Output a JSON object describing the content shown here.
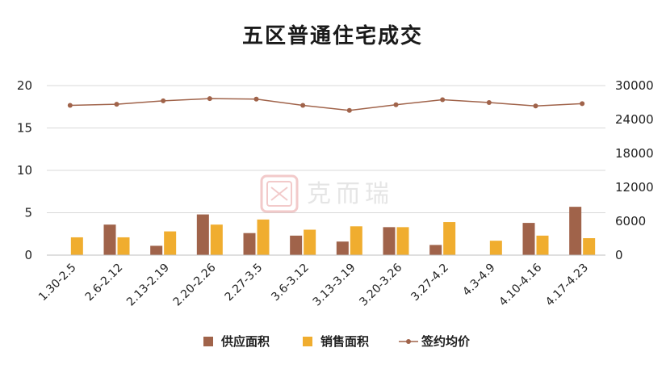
{
  "chart_data": {
    "type": "bar",
    "title": "五区普通住宅成交",
    "categories": [
      "1.30-2.5",
      "2.6-2.12",
      "2.13-2.19",
      "2.20-2.26",
      "2.27-3.5",
      "3.6-3.12",
      "3.13-3.19",
      "3.20-3.26",
      "3.27-4.2",
      "4.3-4.9",
      "4.10-4.16",
      "4.17-4.23"
    ],
    "series": [
      {
        "name": "供应面积",
        "type": "bar",
        "axis": "left",
        "color": "#a0634a",
        "values": [
          0,
          3.6,
          1.1,
          4.8,
          2.6,
          2.3,
          1.6,
          3.3,
          1.2,
          0,
          3.8,
          5.7
        ]
      },
      {
        "name": "销售面积",
        "type": "bar",
        "axis": "left",
        "color": "#f0ad2f",
        "values": [
          2.1,
          2.1,
          2.8,
          3.6,
          4.2,
          3.0,
          3.4,
          3.3,
          3.9,
          1.7,
          2.3,
          2.0
        ]
      },
      {
        "name": "签约均价",
        "type": "line",
        "axis": "right",
        "color": "#a0634a",
        "values": [
          26500,
          26700,
          27300,
          27700,
          27600,
          26500,
          25600,
          26600,
          27500,
          27000,
          26400,
          26800
        ]
      }
    ],
    "y_left": {
      "min": 0,
      "max": 20,
      "ticks": [
        "0",
        "5",
        "10",
        "15",
        "20"
      ]
    },
    "y_right": {
      "min": 0,
      "max": 30000,
      "ticks": [
        "0",
        "6000",
        "12000",
        "18000",
        "24000",
        "30000"
      ]
    },
    "grid": true,
    "legend_position": "bottom"
  },
  "watermark": {
    "text": "克而瑞",
    "seal_icon": "seal-stamp-icon"
  }
}
